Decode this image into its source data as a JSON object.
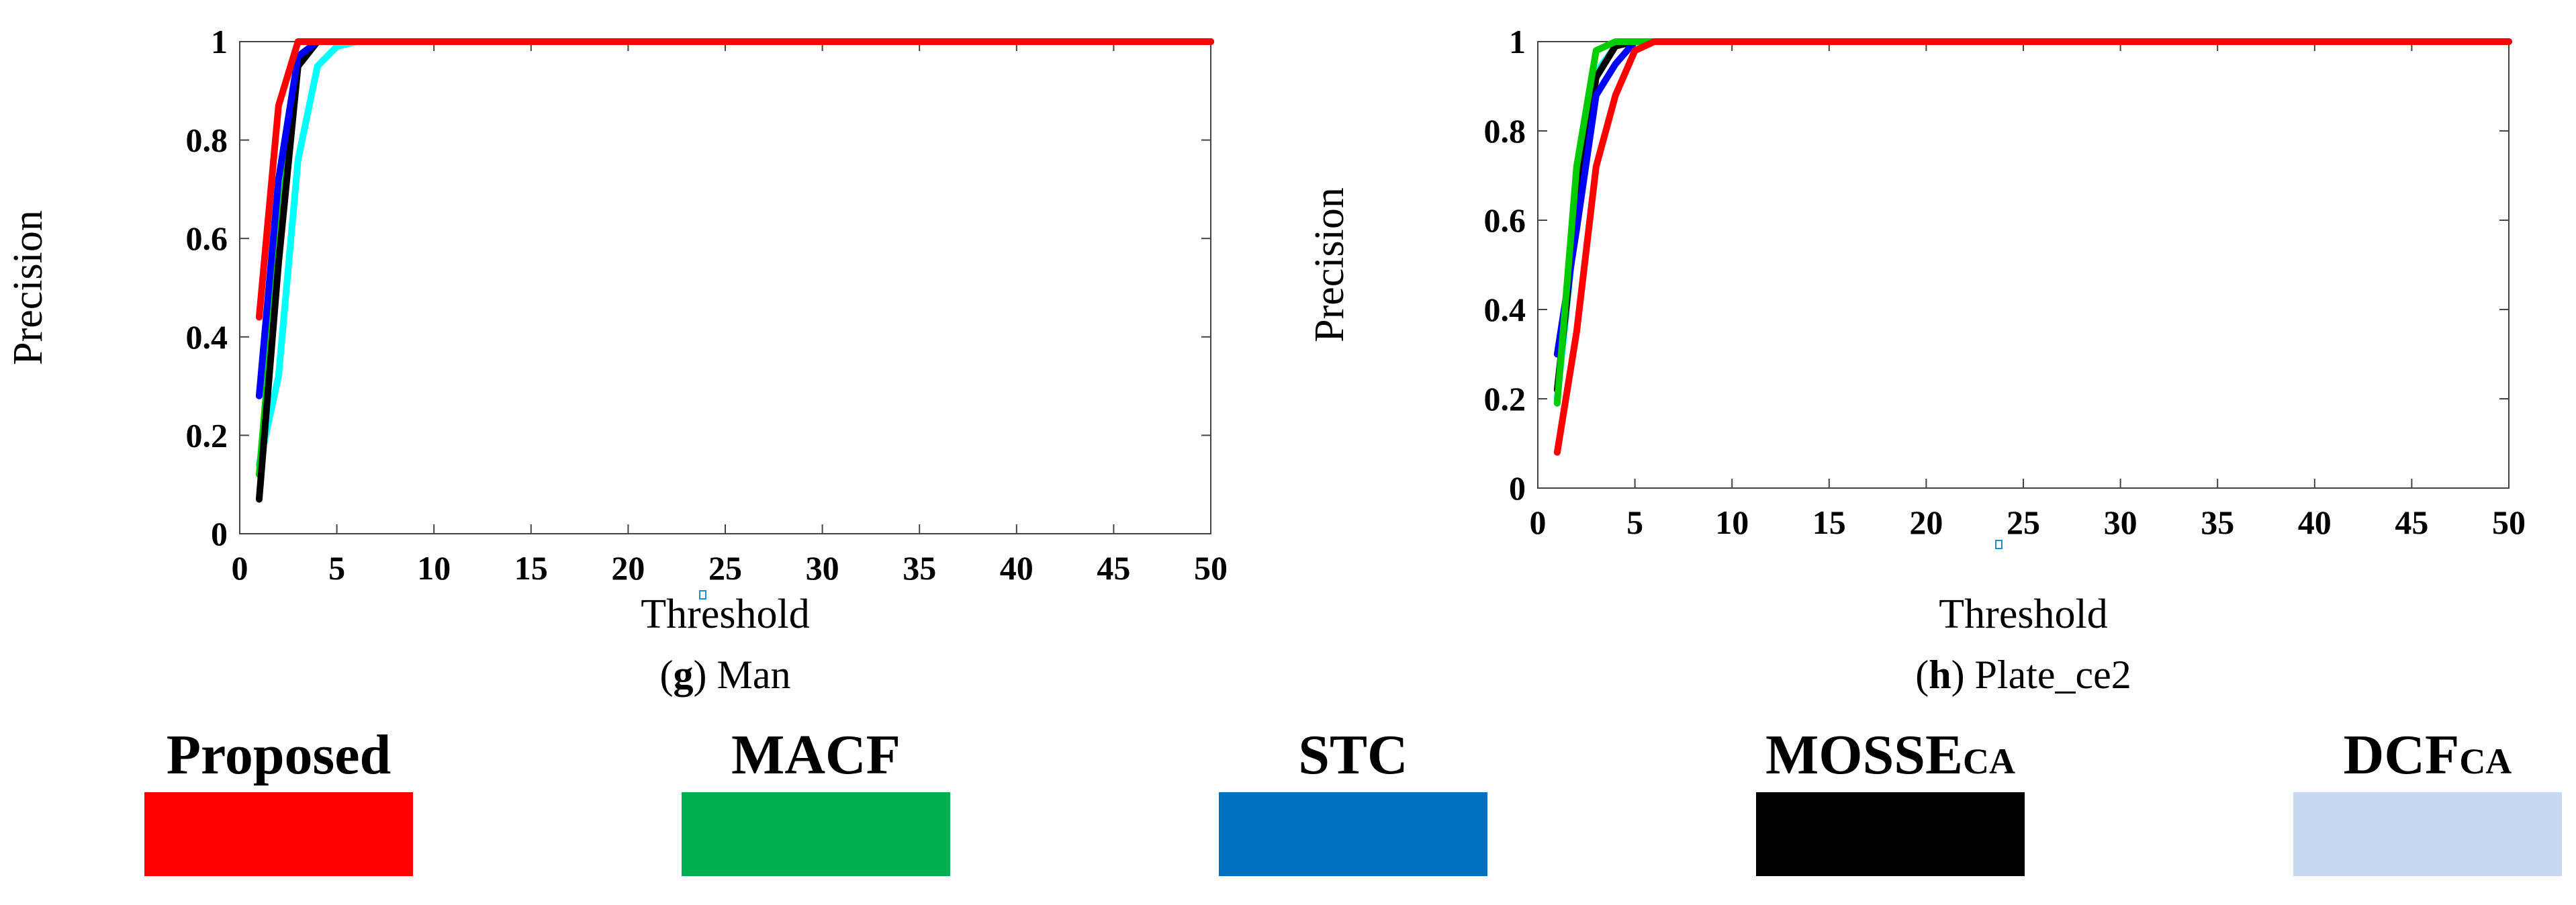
{
  "legend": [
    {
      "label": "Proposed",
      "sub": "",
      "swatch_color": "#ff0000"
    },
    {
      "label": "MACF",
      "sub": "",
      "swatch_color": "#00b050"
    },
    {
      "label": "STC",
      "sub": "",
      "swatch_color": "#0070c0"
    },
    {
      "label": "MOSSE",
      "sub": "CA",
      "swatch_color": "#000000"
    },
    {
      "label": "DCF",
      "sub": "CA",
      "swatch_color": "#c5d9f1"
    }
  ],
  "chart_data": [
    {
      "type": "line",
      "caption_letter": "g",
      "caption_text": " Man",
      "title": "",
      "xlabel": "Threshold",
      "ylabel": "Precision",
      "xlim": [
        0,
        50
      ],
      "ylim": [
        0,
        1
      ],
      "xticks": [
        0,
        5,
        10,
        15,
        20,
        25,
        30,
        35,
        40,
        45,
        50
      ],
      "yticks": [
        0,
        0.2,
        0.4,
        0.6,
        0.8,
        1
      ],
      "xtick_labels": [
        "0",
        "5",
        "10",
        "15",
        "20",
        "25",
        "30",
        "35",
        "40",
        "45",
        "50"
      ],
      "ytick_labels": [
        "0",
        "0.2",
        "0.4",
        "0.6",
        "0.8",
        "1"
      ],
      "series": [
        {
          "name": "DCFCA",
          "color": "#00ffff",
          "x": [
            1,
            2,
            3,
            4,
            5,
            6,
            50
          ],
          "y": [
            0.14,
            0.32,
            0.76,
            0.95,
            0.99,
            1,
            1
          ]
        },
        {
          "name": "MACF",
          "color": "#00cc00",
          "x": [
            1,
            2,
            3,
            4,
            50
          ],
          "y": [
            0.12,
            0.58,
            0.97,
            1,
            1
          ]
        },
        {
          "name": "MOSSECA",
          "color": "#000000",
          "x": [
            1,
            2,
            3,
            4,
            50
          ],
          "y": [
            0.07,
            0.55,
            0.95,
            1,
            1
          ]
        },
        {
          "name": "STC",
          "color": "#0000ff",
          "x": [
            1,
            2,
            3,
            4,
            50
          ],
          "y": [
            0.28,
            0.72,
            0.97,
            1,
            1
          ]
        },
        {
          "name": "Proposed",
          "color": "#ff0000",
          "x": [
            1,
            2,
            3,
            50
          ],
          "y": [
            0.44,
            0.87,
            1,
            1
          ]
        }
      ]
    },
    {
      "type": "line",
      "caption_letter": "h",
      "caption_text": " Plate_ce2",
      "title": "",
      "xlabel": "Threshold",
      "ylabel": "Precision",
      "xlim": [
        0,
        50
      ],
      "ylim": [
        0,
        1
      ],
      "xticks": [
        0,
        5,
        10,
        15,
        20,
        25,
        30,
        35,
        40,
        45,
        50
      ],
      "yticks": [
        0,
        0.2,
        0.4,
        0.6,
        0.8,
        1
      ],
      "xtick_labels": [
        "0",
        "5",
        "10",
        "15",
        "20",
        "25",
        "30",
        "35",
        "40",
        "45",
        "50"
      ],
      "ytick_labels": [
        "0",
        "0.2",
        "0.4",
        "0.6",
        "0.8",
        "1"
      ],
      "series": [
        {
          "name": "DCFCA",
          "color": "#00ffff",
          "x": [
            1,
            2,
            3,
            4,
            5,
            50
          ],
          "y": [
            0.2,
            0.62,
            0.93,
            0.99,
            1,
            1
          ]
        },
        {
          "name": "MOSSECA",
          "color": "#000000",
          "x": [
            1,
            2,
            3,
            4,
            5,
            50
          ],
          "y": [
            0.22,
            0.62,
            0.92,
            0.99,
            1,
            1
          ]
        },
        {
          "name": "STC",
          "color": "#0000ff",
          "x": [
            1,
            2,
            3,
            4,
            5,
            50
          ],
          "y": [
            0.3,
            0.58,
            0.88,
            0.95,
            1,
            1
          ]
        },
        {
          "name": "MACF",
          "color": "#00cc00",
          "x": [
            1,
            2,
            3,
            4,
            5,
            50
          ],
          "y": [
            0.19,
            0.72,
            0.98,
            1,
            1,
            1
          ]
        },
        {
          "name": "Proposed",
          "color": "#ff0000",
          "x": [
            1,
            2,
            3,
            4,
            5,
            6,
            50
          ],
          "y": [
            0.08,
            0.35,
            0.72,
            0.88,
            0.98,
            1,
            1
          ]
        }
      ]
    }
  ]
}
